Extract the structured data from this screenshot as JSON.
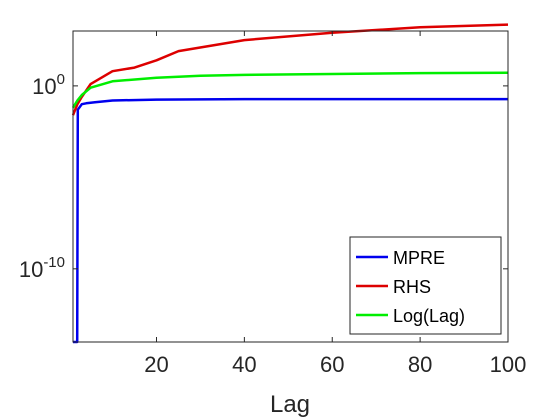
{
  "chart_data": {
    "type": "line",
    "title": "",
    "xlabel": "Lag",
    "ylabel": "",
    "xlim": [
      1,
      100
    ],
    "ylim_log10": [
      -14,
      3
    ],
    "yscale": "log",
    "grid": false,
    "legend_position": "bottom-right",
    "x_ticks": [
      20,
      40,
      60,
      80,
      100
    ],
    "x_tick_labels": [
      "20",
      "40",
      "60",
      "80",
      "100"
    ],
    "y_ticks_log10": [
      0,
      -10
    ],
    "y_tick_labels": [
      {
        "base": "10",
        "exp": "0"
      },
      {
        "base": "10",
        "exp": "-10"
      }
    ],
    "series": [
      {
        "name": "MPRE",
        "color": "#0000ee",
        "x": [
          1,
          1.95,
          2.1,
          3,
          4,
          6,
          10,
          20,
          40,
          60,
          80,
          100
        ],
        "log10_y": [
          -14,
          -14,
          -1.3,
          -1.0,
          -0.95,
          -0.9,
          -0.8,
          -0.75,
          -0.72,
          -0.72,
          -0.72,
          -0.72
        ]
      },
      {
        "name": "RHS",
        "color": "#dd0000",
        "x": [
          1,
          2,
          3,
          5,
          10,
          15,
          20,
          25,
          40,
          60,
          80,
          100
        ],
        "log10_y": [
          -1.6,
          -1.0,
          -0.6,
          0.1,
          0.8,
          1.0,
          1.4,
          1.9,
          2.5,
          2.9,
          3.2,
          3.35
        ]
      },
      {
        "name": "Log(Lag)",
        "color": "#00ee00",
        "x": [
          1,
          2,
          3,
          5,
          10,
          20,
          30,
          40,
          60,
          80,
          100
        ],
        "log10_y": [
          -1.2,
          -0.8,
          -0.5,
          -0.1,
          0.25,
          0.45,
          0.55,
          0.6,
          0.65,
          0.7,
          0.72
        ]
      }
    ]
  }
}
